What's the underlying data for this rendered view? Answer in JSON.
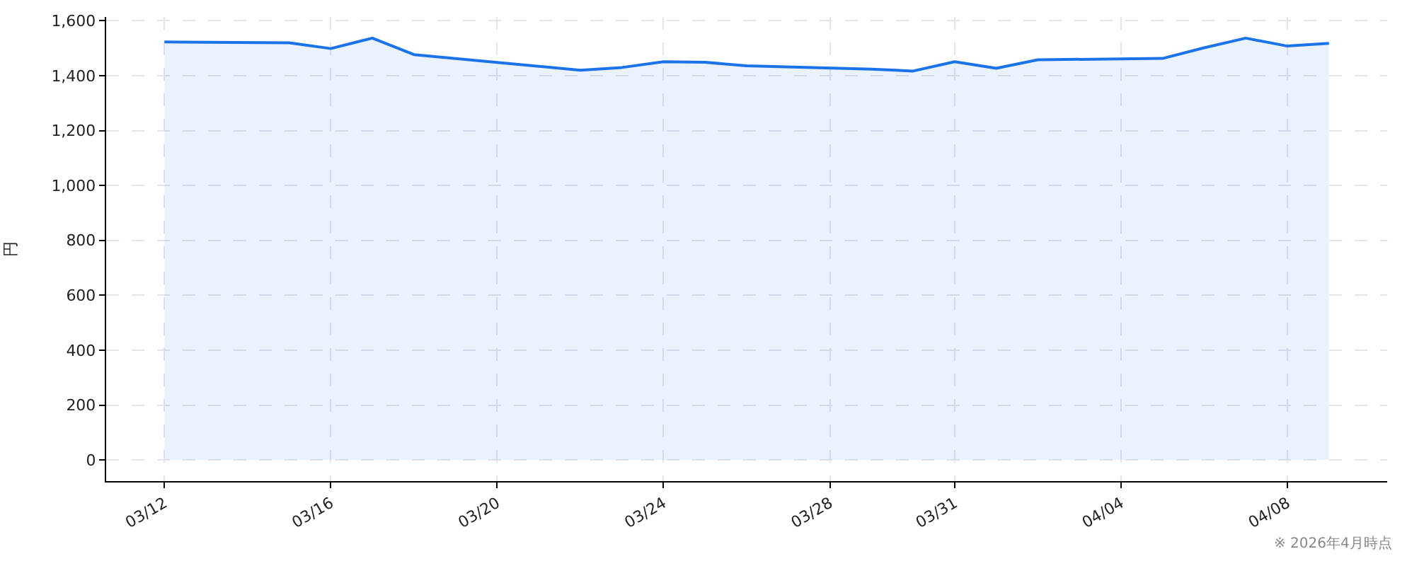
{
  "chart_data": {
    "type": "area",
    "x": [
      "2026-03-12",
      "2026-03-15",
      "2026-03-16",
      "2026-03-17",
      "2026-03-18",
      "2026-03-22",
      "2026-03-23",
      "2026-03-24",
      "2026-03-25",
      "2026-03-26",
      "2026-03-29",
      "2026-03-30",
      "2026-03-31",
      "2026-04-01",
      "2026-04-02",
      "2026-04-05",
      "2026-04-06",
      "2026-04-07",
      "2026-04-08",
      "2026-04-09"
    ],
    "series": [
      {
        "color": "#1a73e8",
        "values": [
          1523,
          1520,
          1499,
          1537,
          1477,
          1420,
          1430,
          1451,
          1449,
          1436,
          1424,
          1417,
          1451,
          1427,
          1458,
          1463,
          1502,
          1537,
          1508,
          1518
        ]
      }
    ],
    "ylabel": "円",
    "xlim": [
      "2026-03-10T14:24",
      "2026-04-10T09:36"
    ],
    "ylim": [
      -77,
      1614
    ],
    "xticks": [
      {
        "value": "2026-03-12",
        "label": "03/12"
      },
      {
        "value": "2026-03-16",
        "label": "03/16"
      },
      {
        "value": "2026-03-20",
        "label": "03/20"
      },
      {
        "value": "2026-03-24",
        "label": "03/24"
      },
      {
        "value": "2026-03-28",
        "label": "03/28"
      },
      {
        "value": "2026-03-31",
        "label": "03/31"
      },
      {
        "value": "2026-04-04",
        "label": "04/04"
      },
      {
        "value": "2026-04-08",
        "label": "04/08"
      }
    ],
    "yticks": [
      0,
      200,
      400,
      600,
      800,
      {
        "value": 1000,
        "label": "1,000"
      },
      {
        "value": 1200,
        "label": "1,200"
      },
      {
        "value": 1400,
        "label": "1,400"
      },
      {
        "value": 1600,
        "label": "1,600"
      }
    ],
    "grid": true,
    "annotations": [
      "※ 2026年4月時点"
    ]
  }
}
